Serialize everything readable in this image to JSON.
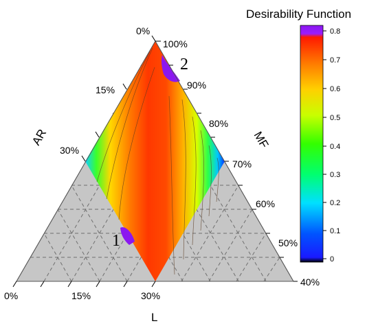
{
  "chart_data": {
    "type": "ternary-contour",
    "colorbar": {
      "title": "Desirability Function",
      "ticks": [
        "0.8",
        "0.7",
        "0.6",
        "0.5",
        "0.4",
        "0.3",
        "0.2",
        "0.1",
        "0"
      ],
      "range": [
        0,
        0.82
      ]
    },
    "axes": {
      "bottom": {
        "title": "L",
        "ticks": [
          "0%",
          "15%",
          "30%"
        ]
      },
      "left": {
        "title": "AR",
        "ticks": [
          "0%",
          "15%",
          "30%"
        ]
      },
      "right": {
        "title": "MF",
        "ticks": [
          "100%",
          "90%",
          "80%",
          "70%",
          "60%",
          "50%",
          "40%"
        ]
      }
    },
    "grid": true,
    "feasible_region": "L, AR between 0% and 30%, MF between 70% and 100%",
    "optima": [
      {
        "label": "1",
        "L": 27,
        "AR": 3,
        "MF": 70,
        "desirability": 0.82
      },
      {
        "label": "2",
        "L": 0,
        "AR": 6,
        "MF": 94,
        "desirability": 0.82
      }
    ]
  },
  "colors": {
    "outside_region": "#c6c6c6",
    "grid": "#6f6f6f",
    "optimum": "#8b17f0"
  }
}
